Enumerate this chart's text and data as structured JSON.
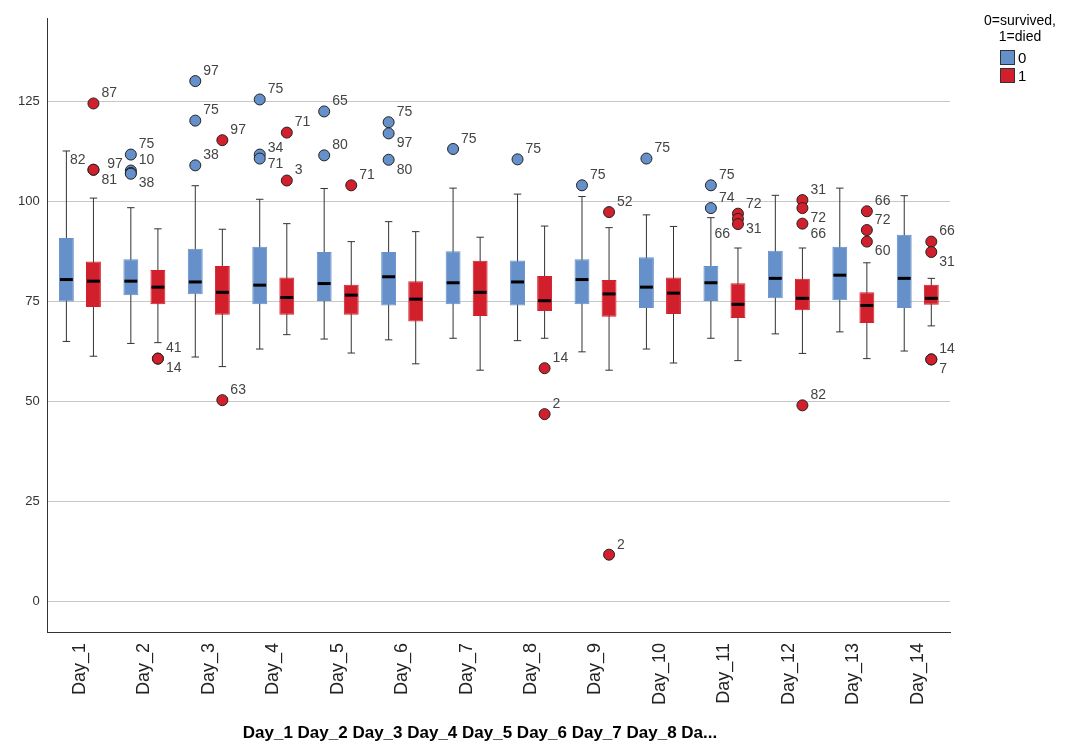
{
  "chart_data": {
    "type": "box",
    "categories": [
      "Day_1",
      "Day_2",
      "Day_3",
      "Day_4",
      "Day_5",
      "Day_6",
      "Day_7",
      "Day_8",
      "Day_9",
      "Day_10",
      "Day_11",
      "Day_12",
      "Day_13",
      "Day_14"
    ],
    "xlabel": "Day_1 Day_2 Day_3 Day_4 Day_5 Day_6 Day_7 Day_8 Da...",
    "legend_title": "0=survived, 1=died",
    "series": [
      {
        "name": "0",
        "color": "#6590c9",
        "boxes": [
          {
            "low": 65.0,
            "q1": 75.0,
            "median": 80.5,
            "q3": 90.9,
            "high": 112.7
          },
          {
            "low": 64.5,
            "q1": 76.6,
            "median": 80.1,
            "q3": 85.6,
            "high": 98.5,
            "outliers": [
              111.8,
              107.8,
              107.2,
              107.0
            ]
          },
          {
            "low": 61.1,
            "q1": 76.8,
            "median": 79.9,
            "q3": 88.2,
            "high": 104.0,
            "outliers": [
              130.2,
              120.3,
              109.1
            ]
          },
          {
            "low": 63.1,
            "q1": 74.3,
            "median": 79.1,
            "q3": 88.7,
            "high": 100.6,
            "outliers": [
              125.6,
              111.8,
              110.8
            ]
          },
          {
            "low": 65.6,
            "q1": 75.1,
            "median": 79.5,
            "q3": 87.4,
            "high": 103.3,
            "outliers": [
              122.6,
              111.6
            ]
          },
          {
            "low": 65.4,
            "q1": 74.0,
            "median": 81.2,
            "q3": 87.4,
            "high": 95.0,
            "outliers": [
              119.9,
              117.1,
              110.5
            ]
          },
          {
            "low": 65.8,
            "q1": 74.3,
            "median": 79.7,
            "q3": 87.6,
            "high": 103.4,
            "outliers": [
              113.2
            ]
          },
          {
            "low": 65.2,
            "q1": 74.0,
            "median": 79.9,
            "q3": 85.3,
            "high": 101.9,
            "outliers": [
              110.6
            ]
          },
          {
            "low": 62.4,
            "q1": 74.3,
            "median": 80.5,
            "q3": 85.6,
            "high": 101.3,
            "outliers": [
              104.1
            ]
          },
          {
            "low": 63.1,
            "q1": 73.4,
            "median": 78.6,
            "q3": 86.1,
            "high": 96.7,
            "outliers": [
              110.8
            ]
          },
          {
            "low": 65.8,
            "q1": 75.1,
            "median": 79.7,
            "q3": 83.9,
            "high": 96.0,
            "outliers": [
              104.1,
              98.4
            ]
          },
          {
            "low": 66.9,
            "q1": 75.8,
            "median": 80.8,
            "q3": 87.7,
            "high": 101.6
          },
          {
            "low": 67.4,
            "q1": 75.3,
            "median": 81.6,
            "q3": 88.7,
            "high": 103.4
          },
          {
            "low": 62.6,
            "q1": 73.4,
            "median": 80.8,
            "q3": 91.7,
            "high": 101.5
          }
        ]
      },
      {
        "name": "1",
        "color": "#d21f2c",
        "boxes": [
          {
            "low": 61.3,
            "q1": 73.6,
            "median": 80.1,
            "q3": 85.0,
            "high": 100.9,
            "outliers": [
              124.6,
              108.0,
              108.0
            ]
          },
          {
            "low": 64.7,
            "q1": 74.3,
            "median": 78.6,
            "q3": 82.9,
            "high": 93.2,
            "outliers": [
              60.7,
              60.7
            ]
          },
          {
            "low": 58.7,
            "q1": 71.7,
            "median": 77.3,
            "q3": 83.9,
            "high": 93.1,
            "outliers": [
              115.4,
              50.3
            ]
          },
          {
            "low": 66.7,
            "q1": 71.7,
            "median": 76.0,
            "q3": 81.0,
            "high": 94.5,
            "outliers": [
              117.3,
              105.3
            ]
          },
          {
            "low": 62.1,
            "q1": 71.7,
            "median": 76.6,
            "q3": 79.2,
            "high": 90.0,
            "outliers": [
              104.1
            ]
          },
          {
            "low": 59.4,
            "q1": 70.0,
            "median": 75.6,
            "q3": 80.1,
            "high": 92.5
          },
          {
            "low": 57.8,
            "q1": 71.4,
            "median": 77.3,
            "q3": 85.2,
            "high": 91.1
          },
          {
            "low": 65.8,
            "q1": 72.6,
            "median": 75.2,
            "q3": 81.4,
            "high": 93.9,
            "outliers": [
              58.3,
              46.8
            ]
          },
          {
            "low": 57.8,
            "q1": 71.2,
            "median": 76.9,
            "q3": 80.4,
            "high": 93.5,
            "outliers": [
              97.4,
              11.6
            ]
          },
          {
            "low": 59.6,
            "q1": 71.9,
            "median": 77.1,
            "q3": 81.0,
            "high": 93.8
          },
          {
            "low": 60.2,
            "q1": 70.9,
            "median": 74.3,
            "q3": 79.6,
            "high": 88.4,
            "outliers": [
              97.0,
              95.7,
              94.4
            ]
          },
          {
            "low": 62.0,
            "q1": 72.8,
            "median": 75.8,
            "q3": 80.7,
            "high": 88.4,
            "outliers": [
              100.4,
              98.4,
              94.5,
              49.0
            ]
          },
          {
            "low": 60.7,
            "q1": 69.6,
            "median": 74.0,
            "q3": 77.3,
            "high": 84.7,
            "outliers": [
              97.6,
              92.9,
              90.0
            ]
          },
          {
            "low": 68.9,
            "q1": 74.2,
            "median": 75.8,
            "q3": 79.2,
            "high": 80.8,
            "outliers": [
              90.0,
              87.4,
              60.5,
              60.5
            ]
          }
        ]
      }
    ],
    "annotations": [
      "75",
      "10",
      "38",
      "97",
      "97",
      "75",
      "38",
      "75",
      "71",
      "34",
      "65",
      "80",
      "75",
      "97",
      "80",
      "75",
      "75",
      "75",
      "75",
      "75",
      "74",
      "87",
      "81",
      "82",
      "41",
      "14",
      "97",
      "63",
      "71",
      "3",
      "71",
      "14",
      "2",
      "52",
      "2",
      "72",
      "31",
      "66",
      "31",
      "72",
      "66",
      "82",
      "66",
      "72",
      "60",
      "66",
      "31",
      "14",
      "7"
    ],
    "ylim": [
      -8,
      146
    ],
    "yticks": [
      0,
      25,
      50,
      75,
      100,
      125
    ],
    "grid": "y",
    "legend": "top right",
    "marker": "circle"
  }
}
